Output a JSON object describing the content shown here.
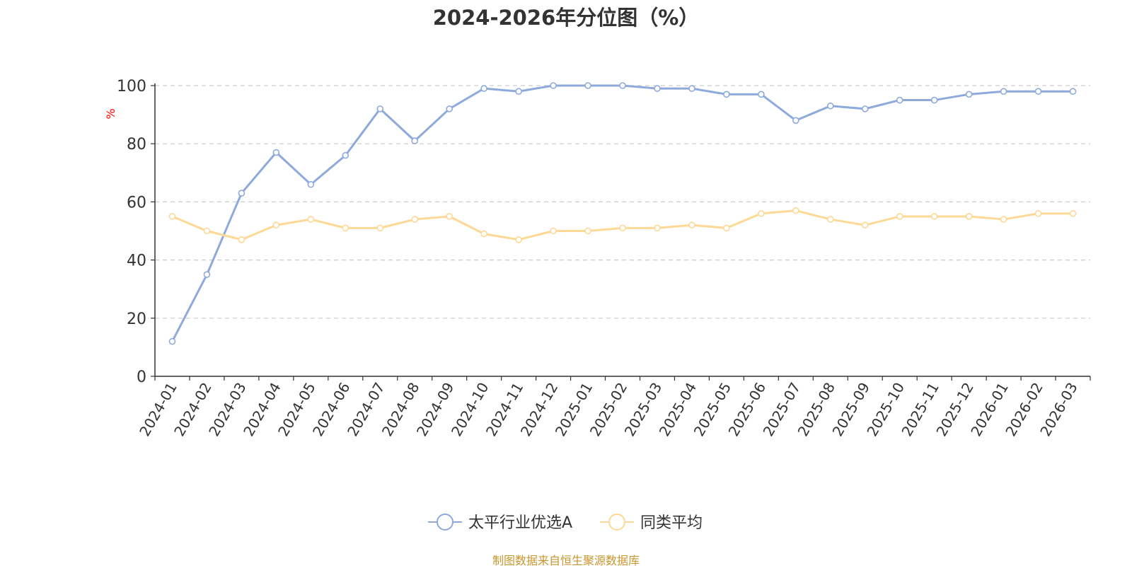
{
  "chart_data": {
    "type": "line",
    "title": "2024-2026年分位图（%）",
    "ylabel": "%",
    "xlabel": "",
    "ylim": [
      0,
      100
    ],
    "yticks": [
      0,
      20,
      40,
      60,
      80,
      100
    ],
    "grid": true,
    "legend_position": "bottom-center",
    "categories": [
      "2024-01",
      "2024-02",
      "2024-03",
      "2024-04",
      "2024-05",
      "2024-06",
      "2024-07",
      "2024-08",
      "2024-09",
      "2024-10",
      "2024-11",
      "2024-12",
      "2025-01",
      "2025-02",
      "2025-03",
      "2025-04",
      "2025-05",
      "2025-06",
      "2025-07",
      "2025-08",
      "2025-09",
      "2025-10",
      "2025-11",
      "2025-12",
      "2026-01",
      "2026-02",
      "2026-03"
    ],
    "series": [
      {
        "name": "太平行业优选A",
        "color": "#8eaadb",
        "values": [
          12,
          35,
          63,
          77,
          66,
          76,
          92,
          81,
          92,
          99,
          98,
          100,
          100,
          100,
          99,
          99,
          97,
          97,
          88,
          93,
          92,
          95,
          95,
          97,
          98,
          98,
          98
        ]
      },
      {
        "name": "同类平均",
        "color": "#fdd995",
        "values": [
          55,
          50,
          47,
          52,
          54,
          51,
          51,
          54,
          55,
          49,
          47,
          50,
          50,
          51,
          51,
          52,
          51,
          56,
          57,
          54,
          52,
          55,
          55,
          55,
          54,
          56,
          56
        ]
      }
    ]
  },
  "footer": {
    "source": "制图数据来自恒生聚源数据库"
  },
  "colors": {
    "axis_label": "#ff0000",
    "grid": "#cccccc",
    "source_text": "#c8962e"
  }
}
